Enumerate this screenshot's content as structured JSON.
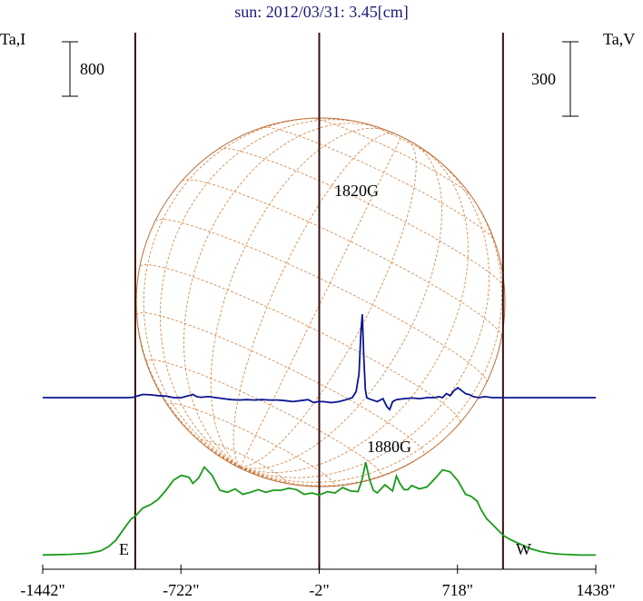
{
  "chart_data": {
    "type": "line",
    "title": "sun: 2012/03/31: 3.45[cm]",
    "left_axis_label": "Ta,I",
    "right_axis_label": "Ta,V",
    "left_scale_bar": "800",
    "right_scale_bar": "300",
    "xlim": [
      -1442,
      1438
    ],
    "x_ticks": [
      -1442,
      -722,
      -2,
      718,
      1438
    ],
    "x_tick_labels": [
      "-1442\"",
      "-722\"",
      "-2\"",
      "718\"",
      "1438\""
    ],
    "vertical_markers": [
      -960,
      -2,
      955
    ],
    "limb_labels": {
      "east": "E",
      "west": "W"
    },
    "annotations": [
      {
        "text": "1820G",
        "x": 230,
        "series": "V"
      },
      {
        "text": "1880G",
        "x": 230,
        "series": "V"
      }
    ],
    "colors": {
      "title": "#1a1a7a",
      "intensity": "#1a9a1a",
      "polarization": "#0b1590",
      "markers": "#3a1010",
      "disk": "#b86a3a",
      "grid": "#d08040"
    },
    "grid": false,
    "series": [
      {
        "name": "I",
        "units": "relative",
        "x": [
          -1442,
          -1300,
          -1200,
          -1140,
          -1100,
          -1060,
          -1030,
          -1000,
          -980,
          -960,
          -940,
          -920,
          -880,
          -840,
          -800,
          -760,
          -720,
          -680,
          -660,
          -630,
          -600,
          -560,
          -520,
          -480,
          -440,
          -400,
          -360,
          -320,
          -280,
          -240,
          -200,
          -160,
          -120,
          -80,
          -40,
          -2,
          40,
          80,
          120,
          160,
          200,
          220,
          240,
          260,
          280,
          300,
          340,
          380,
          400,
          420,
          440,
          460,
          480,
          520,
          560,
          600,
          640,
          680,
          720,
          760,
          790,
          820,
          840,
          870,
          900,
          930,
          960,
          990,
          1020,
          1060,
          1100,
          1150,
          1200,
          1250,
          1300,
          1350,
          1438
        ],
        "y": [
          10,
          18,
          35,
          70,
          130,
          230,
          350,
          470,
          540,
          580,
          640,
          700,
          750,
          830,
          960,
          1110,
          1180,
          1150,
          1060,
          1140,
          1300,
          1180,
          960,
          930,
          980,
          900,
          930,
          970,
          930,
          960,
          960,
          990,
          970,
          900,
          920,
          890,
          940,
          920,
          1000,
          950,
          940,
          1100,
          1370,
          1120,
          960,
          920,
          1040,
          950,
          1170,
          1050,
          970,
          970,
          1030,
          980,
          1010,
          1130,
          1260,
          1230,
          1100,
          900,
          870,
          800,
          680,
          540,
          460,
          370,
          290,
          240,
          200,
          150,
          100,
          60,
          35,
          22,
          15,
          10,
          8
        ]
      },
      {
        "name": "V",
        "units": "relative",
        "x": [
          -1442,
          -1200,
          -1050,
          -1000,
          -970,
          -950,
          -920,
          -880,
          -840,
          -800,
          -760,
          -720,
          -680,
          -660,
          -640,
          -620,
          -580,
          -540,
          -500,
          -460,
          -420,
          -380,
          -340,
          -300,
          -260,
          -220,
          -180,
          -140,
          -100,
          -60,
          -30,
          -10,
          20,
          60,
          100,
          140,
          170,
          190,
          205,
          215,
          222,
          230,
          238,
          246,
          255,
          270,
          300,
          330,
          350,
          365,
          380,
          400,
          440,
          480,
          520,
          560,
          600,
          620,
          640,
          660,
          680,
          700,
          720,
          740,
          760,
          780,
          800,
          830,
          860,
          900,
          960,
          1020,
          1100,
          1200,
          1300,
          1438
        ],
        "y": [
          0,
          0,
          0,
          0,
          2,
          8,
          16,
          14,
          10,
          8,
          0,
          0,
          10,
          16,
          5,
          2,
          5,
          0,
          -5,
          -10,
          -12,
          -10,
          -12,
          -10,
          -12,
          -12,
          -15,
          -20,
          -15,
          -10,
          -25,
          -20,
          -20,
          -25,
          -20,
          -10,
          0,
          30,
          120,
          330,
          420,
          200,
          40,
          0,
          -5,
          -10,
          -20,
          -5,
          -45,
          -60,
          -20,
          -10,
          -5,
          -2,
          -5,
          0,
          0,
          5,
          0,
          20,
          10,
          35,
          50,
          35,
          20,
          15,
          5,
          0,
          5,
          0,
          0,
          0,
          0,
          0,
          0,
          0
        ]
      }
    ]
  }
}
